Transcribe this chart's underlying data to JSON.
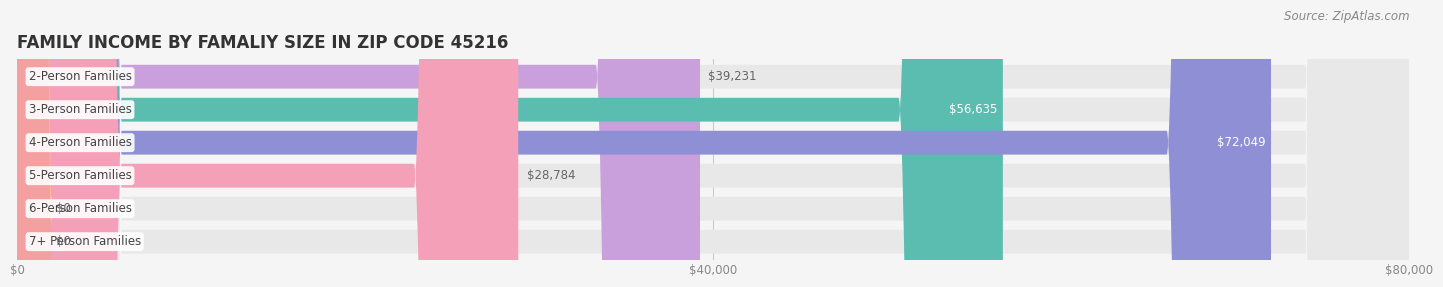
{
  "title": "FAMILY INCOME BY FAMALIY SIZE IN ZIP CODE 45216",
  "source": "Source: ZipAtlas.com",
  "categories": [
    "2-Person Families",
    "3-Person Families",
    "4-Person Families",
    "5-Person Families",
    "6-Person Families",
    "7+ Person Families"
  ],
  "values": [
    39231,
    56635,
    72049,
    28784,
    0,
    0
  ],
  "bar_colors": [
    "#c9a0dc",
    "#5bbcb0",
    "#8e8fd4",
    "#f4a0b8",
    "#f7c99a",
    "#f4a0a0"
  ],
  "bg_color": "#f5f5f5",
  "bar_bg_color": "#e8e8e8",
  "xlim": [
    0,
    80000
  ],
  "xticks": [
    0,
    40000,
    80000
  ],
  "xticklabels": [
    "$0",
    "$40,000",
    "$80,000"
  ],
  "title_fontsize": 12,
  "label_fontsize": 8.5,
  "tick_fontsize": 8.5,
  "source_fontsize": 8.5
}
